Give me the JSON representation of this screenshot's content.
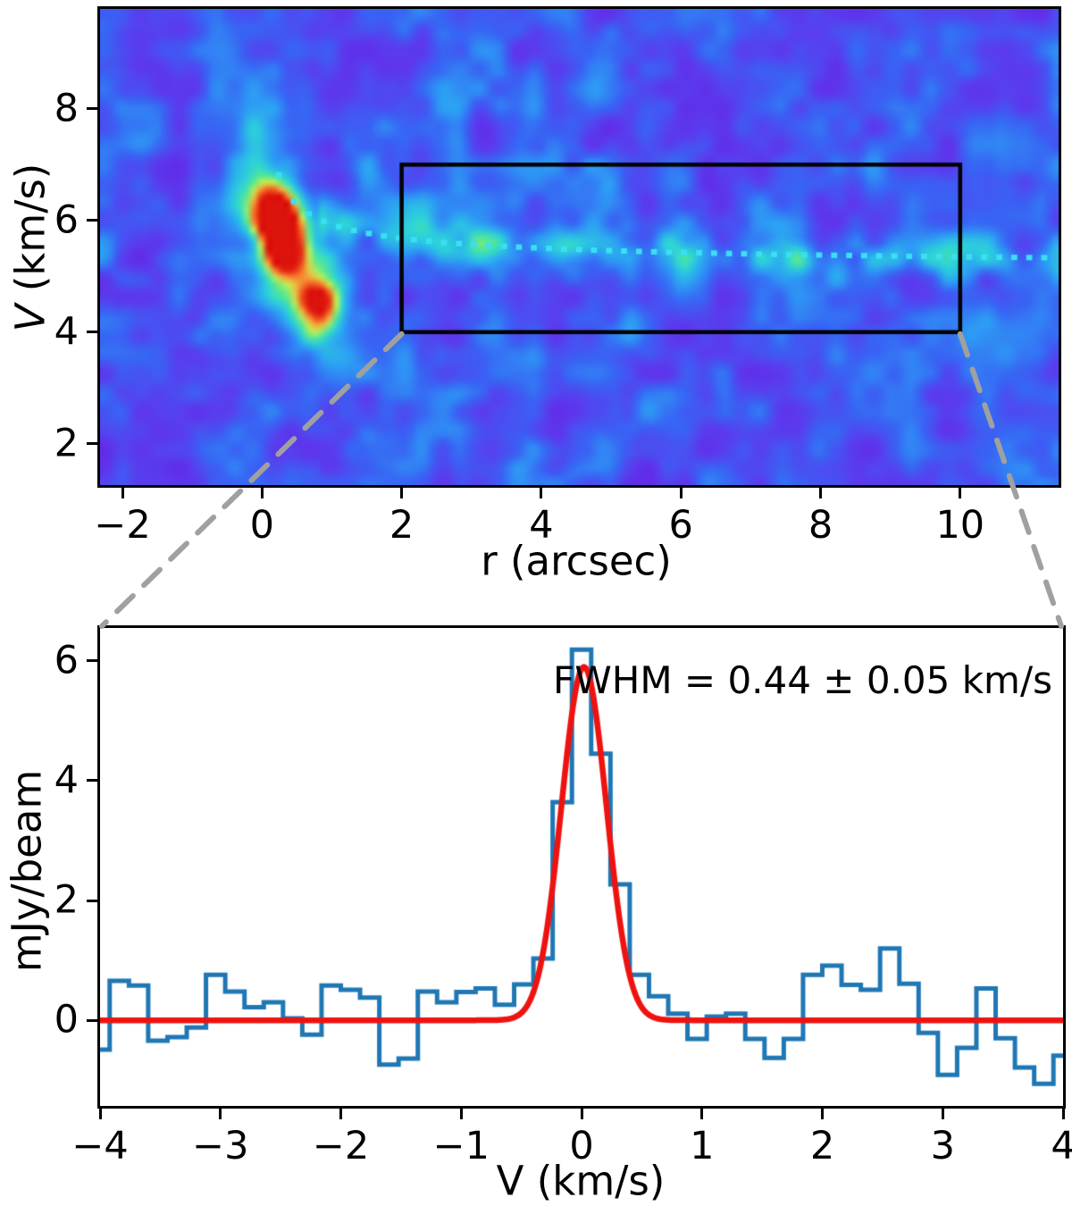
{
  "figure": {
    "description": "Two-panel radio astronomy figure: position-velocity diagram (top) with extraction box linked by dashed lines to an averaged line spectrum with Gaussian fit (bottom)"
  },
  "connectors": {
    "color": "#a0a0a0",
    "style": "dashed",
    "from": "bottom corners of extraction box",
    "to": "top corners of spectrum panel"
  },
  "chart_data": [
    {
      "type": "heatmap",
      "title": "position-velocity diagram",
      "xlabel": "r (arcsec)",
      "ylabel": {
        "italic": "V",
        "rest": " (km/s)"
      },
      "xlim": [
        -2.32,
        11.41
      ],
      "ylim": [
        1.26,
        9.79
      ],
      "grid": false,
      "xticks": {
        "values": [
          -2,
          0,
          2,
          4,
          6,
          8,
          10
        ],
        "labels": [
          "−2",
          "0",
          "2",
          "4",
          "6",
          "8",
          "10"
        ]
      },
      "yticks": {
        "values": [
          2,
          4,
          6,
          8
        ],
        "labels": [
          "2",
          "4",
          "6",
          "8"
        ]
      },
      "colormap": "rainbow (violet-blue-cyan-green-yellow-orange-red)",
      "background_color": "#6c2ce4",
      "extraction_box": {
        "r_range": [
          2,
          10
        ],
        "v_range": [
          4,
          7
        ],
        "color": "#000000"
      },
      "rotation_curve": {
        "model": "v = v_sys + a/sqrt(r)",
        "v_sys_kms": 5.08,
        "a": 0.85,
        "r_range": [
          0.24,
          11.41
        ],
        "style": "dotted",
        "color": "#3ae0f2"
      },
      "features": [
        {
          "name": "bright inner clump",
          "r_arcsec": 0.25,
          "v_kms": 5.85,
          "intensity": "peak (red)"
        },
        {
          "name": "secondary clump",
          "r_arcsec": 0.8,
          "v_kms": 4.45,
          "intensity": "strong (orange)"
        },
        {
          "name": "extended filament",
          "r_arcsec": "2 to 11.4",
          "v_kms": 5.4,
          "intensity": "faint (cyan)"
        }
      ]
    },
    {
      "type": "line",
      "title": "averaged spectrum in extraction box",
      "xlabel": "V (km/s)",
      "ylabel": "mJy/beam",
      "xlim": [
        -4,
        4
      ],
      "ylim": [
        -1.43,
        6.55
      ],
      "grid": false,
      "xticks": {
        "values": [
          -4,
          -3,
          -2,
          -1,
          0,
          1,
          2,
          3,
          4
        ],
        "labels": [
          "−4",
          "−3",
          "−2",
          "−1",
          "0",
          "1",
          "2",
          "3",
          "4"
        ]
      },
      "yticks": {
        "values": [
          0,
          2,
          4,
          6
        ],
        "labels": [
          "0",
          "2",
          "4",
          "6"
        ]
      },
      "annotation": "FWHM = 0.44 ± 0.05 km/s",
      "bin_width_kms": 0.16,
      "x": [
        -4.0,
        -3.84,
        -3.68,
        -3.52,
        -3.36,
        -3.2,
        -3.04,
        -2.88,
        -2.72,
        -2.56,
        -2.4,
        -2.24,
        -2.08,
        -1.92,
        -1.76,
        -1.6,
        -1.44,
        -1.28,
        -1.12,
        -0.96,
        -0.8,
        -0.64,
        -0.48,
        -0.32,
        -0.16,
        0.0,
        0.16,
        0.32,
        0.48,
        0.64,
        0.8,
        0.96,
        1.12,
        1.28,
        1.44,
        1.6,
        1.76,
        1.92,
        2.08,
        2.24,
        2.4,
        2.56,
        2.72,
        2.88,
        3.04,
        3.2,
        3.36,
        3.52,
        3.68,
        3.84,
        4.0
      ],
      "series": [
        {
          "name": "observed spectrum",
          "type": "steps",
          "color": "#1f77b4",
          "values": [
            -0.49,
            0.66,
            0.58,
            -0.34,
            -0.28,
            -0.12,
            0.76,
            0.48,
            0.22,
            0.3,
            0.03,
            -0.24,
            0.58,
            0.51,
            0.38,
            -0.74,
            -0.64,
            0.48,
            0.3,
            0.47,
            0.53,
            0.26,
            0.6,
            1.03,
            3.64,
            6.19,
            4.45,
            2.27,
            0.76,
            0.4,
            0.11,
            -0.31,
            0.06,
            0.11,
            -0.31,
            -0.63,
            -0.31,
            0.76,
            0.91,
            0.59,
            0.51,
            1.2,
            0.61,
            -0.21,
            -0.91,
            -0.46,
            0.53,
            -0.3,
            -0.79,
            -1.06,
            -0.59
          ]
        },
        {
          "name": "Gaussian fit",
          "type": "curve",
          "color": "#ee1310",
          "amplitude_mjy": 5.9,
          "center_kms": 0.02,
          "fwhm_kms": 0.44,
          "baseline_mjy": 0
        }
      ]
    }
  ]
}
